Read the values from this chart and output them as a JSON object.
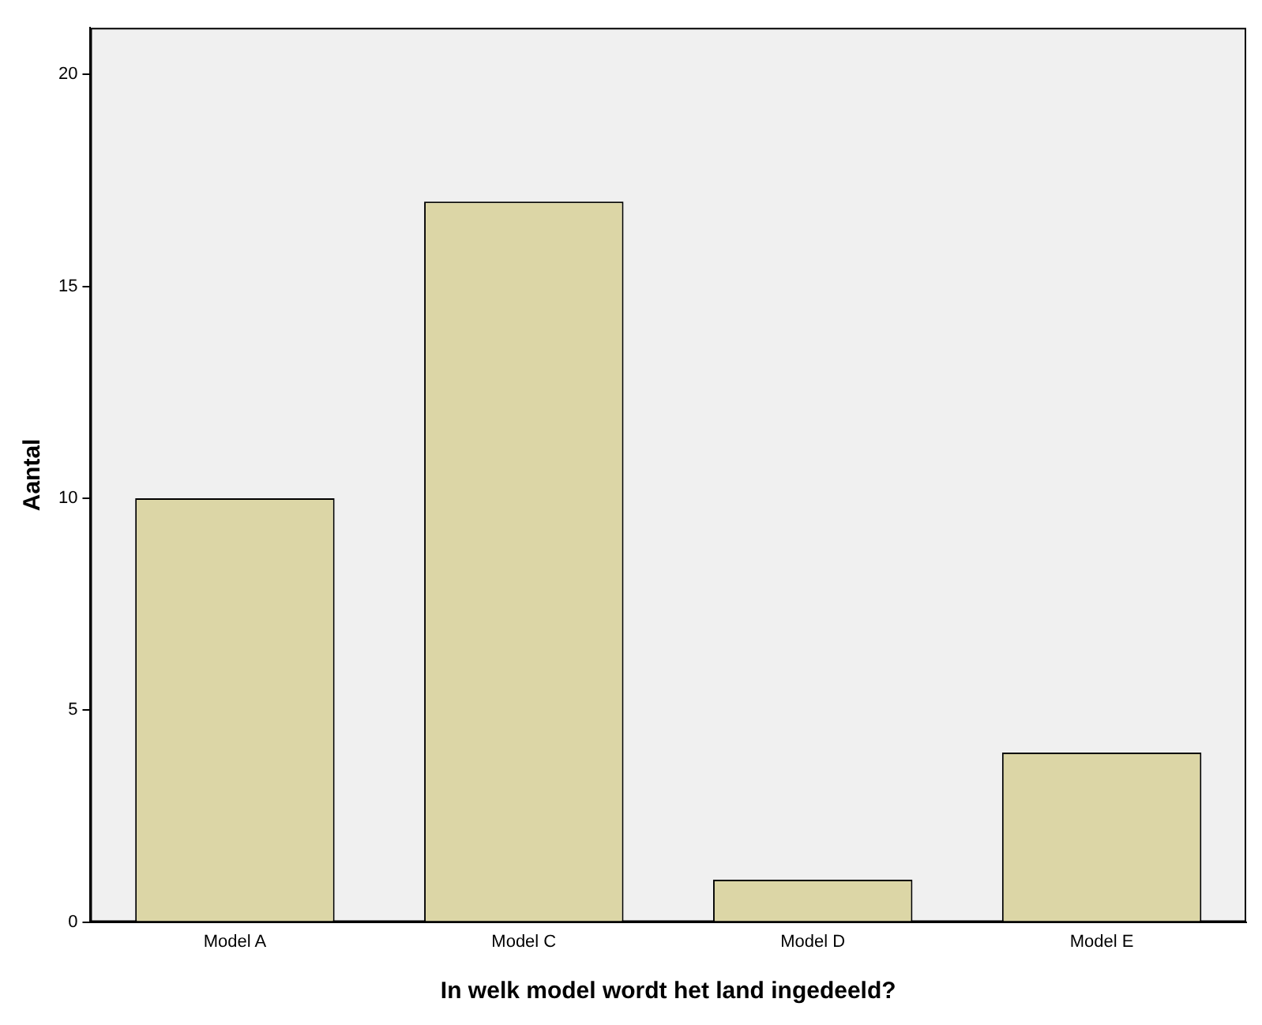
{
  "chart_data": {
    "type": "bar",
    "xlabel": "In welk model wordt het land ingedeeld?",
    "ylabel": "Aantal",
    "categories": [
      "Model A",
      "Model C",
      "Model D",
      "Model E"
    ],
    "values": [
      10,
      17,
      1,
      4
    ],
    "color": "#dcd6a6",
    "ylim": [
      0,
      21.1
    ],
    "yticks": [
      0,
      5,
      10,
      15,
      20
    ],
    "grid": false,
    "legend": false
  }
}
